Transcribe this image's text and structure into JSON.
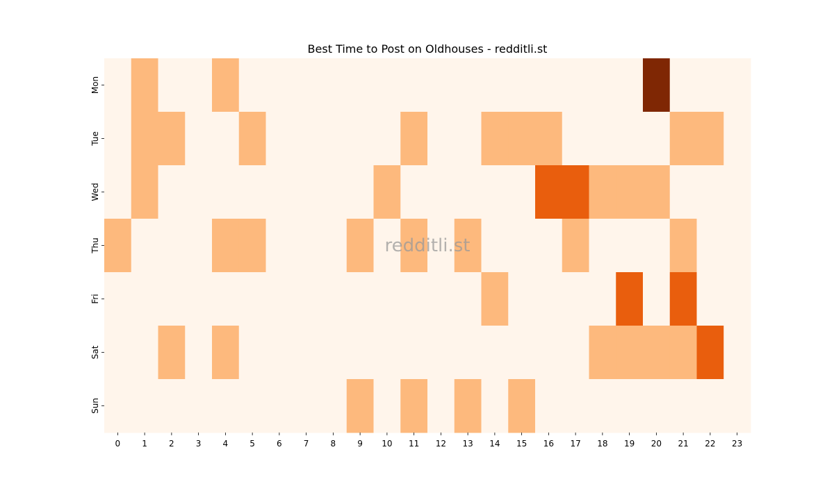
{
  "chart_data": {
    "type": "heatmap",
    "title": "Best Time to Post on Oldhouses - redditli.st",
    "xlabel": "",
    "ylabel": "",
    "x": [
      "0",
      "1",
      "2",
      "3",
      "4",
      "5",
      "6",
      "7",
      "8",
      "9",
      "10",
      "11",
      "12",
      "13",
      "14",
      "15",
      "16",
      "17",
      "18",
      "19",
      "20",
      "21",
      "22",
      "23"
    ],
    "y": [
      "Mon",
      "Tue",
      "Wed",
      "Thu",
      "Fri",
      "Sat",
      "Sun"
    ],
    "values": [
      [
        0,
        1,
        0,
        0,
        1,
        0,
        0,
        0,
        0,
        0,
        0,
        0,
        0,
        0,
        0,
        0,
        0,
        0,
        0,
        0,
        4,
        0,
        0,
        0
      ],
      [
        0,
        1,
        1,
        0,
        0,
        1,
        0,
        0,
        0,
        0,
        0,
        1,
        0,
        0,
        1,
        1,
        1,
        0,
        0,
        0,
        0,
        1,
        1,
        0
      ],
      [
        0,
        1,
        0,
        0,
        0,
        0,
        0,
        0,
        0,
        0,
        1,
        0,
        0,
        0,
        0,
        0,
        2,
        2,
        1,
        1,
        1,
        0,
        0,
        0
      ],
      [
        1,
        0,
        0,
        0,
        1,
        1,
        0,
        0,
        0,
        1,
        0,
        1,
        0,
        1,
        0,
        0,
        0,
        1,
        0,
        0,
        0,
        1,
        0,
        0
      ],
      [
        0,
        0,
        0,
        0,
        0,
        0,
        0,
        0,
        0,
        0,
        0,
        0,
        0,
        0,
        1,
        0,
        0,
        0,
        0,
        2,
        0,
        2,
        0,
        0
      ],
      [
        0,
        0,
        1,
        0,
        1,
        0,
        0,
        0,
        0,
        0,
        0,
        0,
        0,
        0,
        0,
        0,
        0,
        0,
        1,
        1,
        1,
        1,
        2,
        0
      ],
      [
        0,
        0,
        0,
        0,
        0,
        0,
        0,
        0,
        0,
        1,
        0,
        1,
        0,
        1,
        0,
        1,
        0,
        0,
        0,
        0,
        0,
        0,
        0,
        0
      ]
    ],
    "colorscale": [
      "#fff5eb",
      "#fdb97d",
      "#e95e0d",
      "#e95e0d",
      "#7f2704"
    ],
    "vmin": 0,
    "vmax": 4,
    "watermark": "redditli.st"
  }
}
